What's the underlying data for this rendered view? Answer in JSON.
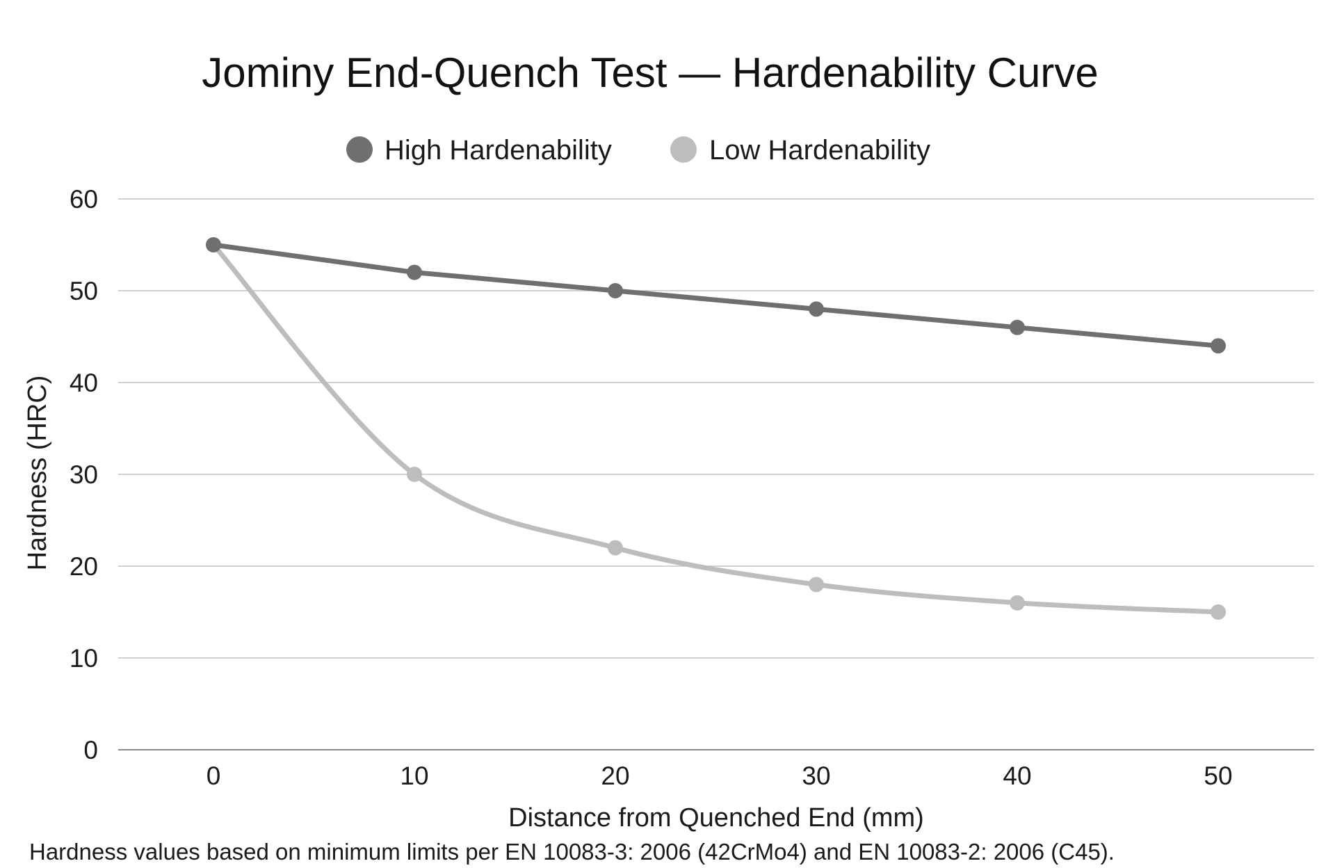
{
  "chart_data": {
    "type": "line",
    "title": "Jominy End-Quench Test — Hardenability Curve",
    "xlabel": "Distance from Quenched End (mm)",
    "ylabel": "Hardness (HRC)",
    "x": [
      0,
      10,
      20,
      30,
      40,
      50
    ],
    "x_ticks": [
      "0",
      "10",
      "20",
      "30",
      "40",
      "50"
    ],
    "y_ticks": [
      "0",
      "10",
      "20",
      "30",
      "40",
      "50",
      "60"
    ],
    "xlim": [
      0,
      50
    ],
    "ylim": [
      0,
      60
    ],
    "grid": true,
    "legend_position": "top-center",
    "series": [
      {
        "name": "High Hardenability",
        "color": "#6f6f6f",
        "values": [
          55,
          52,
          50,
          48,
          46,
          44
        ],
        "smooth": false
      },
      {
        "name": "Low Hardenability",
        "color": "#bdbdbd",
        "values": [
          55,
          30,
          22,
          18,
          16,
          15
        ],
        "smooth": true
      }
    ],
    "footnote": "Hardness values based on minimum limits per EN 10083-3: 2006 (42CrMo4) and EN 10083-2: 2006 (C45)."
  }
}
